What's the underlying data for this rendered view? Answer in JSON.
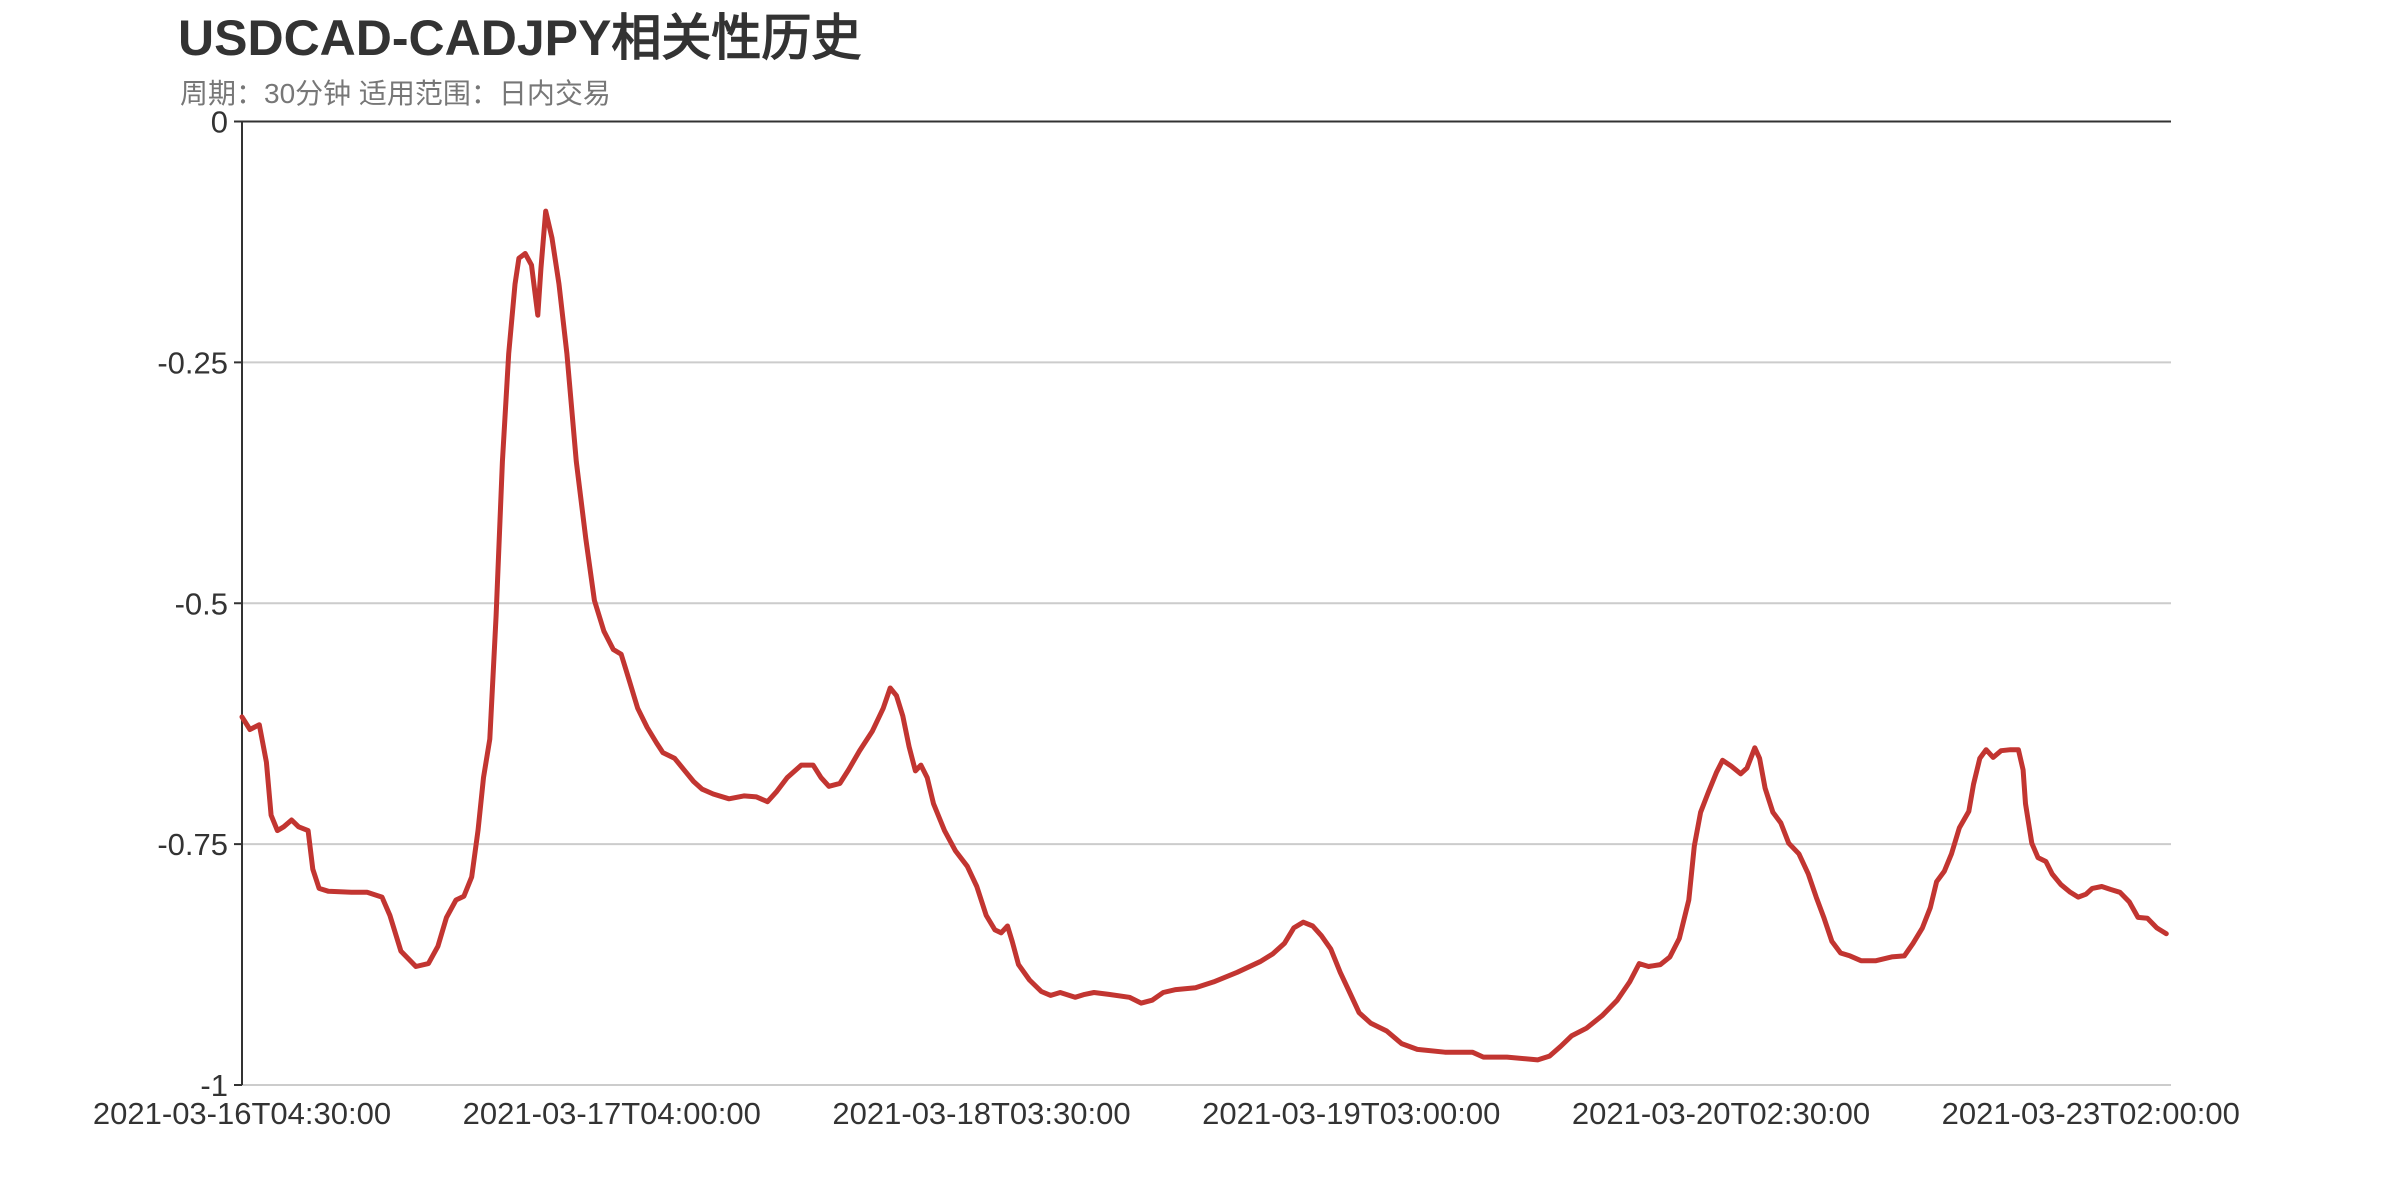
{
  "chart_data": {
    "type": "line",
    "title": "USDCAD-CADJPY相关性历史",
    "subtitle": "周期：30分钟 适用范围：日内交易",
    "xlabel": "",
    "ylabel": "",
    "ylim": [
      -1,
      0
    ],
    "xlim": [
      0,
      245.2
    ],
    "yticks": [
      {
        "value": 0,
        "label": "0"
      },
      {
        "value": -0.25,
        "label": "-0.25"
      },
      {
        "value": -0.5,
        "label": "-0.5"
      },
      {
        "value": -0.75,
        "label": "-0.75"
      },
      {
        "value": -1,
        "label": "-1"
      }
    ],
    "xticks": [
      {
        "index": 0,
        "label": "2021-03-16T04:30:00"
      },
      {
        "index": 47,
        "label": "2021-03-17T04:00:00"
      },
      {
        "index": 94,
        "label": "2021-03-18T03:30:00"
      },
      {
        "index": 141,
        "label": "2021-03-19T03:00:00"
      },
      {
        "index": 188,
        "label": "2021-03-20T02:30:00"
      },
      {
        "index": 235,
        "label": "2021-03-23T02:00:00"
      }
    ],
    "grid": true,
    "series": [
      {
        "name": "USDCAD-CADJPY",
        "color": "#c23531",
        "points": [
          [
            0,
            -0.618
          ],
          [
            1.0,
            -0.631
          ],
          [
            2.2,
            -0.626
          ],
          [
            3.1,
            -0.665
          ],
          [
            3.7,
            -0.72
          ],
          [
            4.5,
            -0.736
          ],
          [
            5.3,
            -0.732
          ],
          [
            6.3,
            -0.725
          ],
          [
            7.2,
            -0.732
          ],
          [
            8.4,
            -0.736
          ],
          [
            9.0,
            -0.776
          ],
          [
            9.8,
            -0.796
          ],
          [
            11.0,
            -0.799
          ],
          [
            13.9,
            -0.8
          ],
          [
            15.9,
            -0.8
          ],
          [
            17.8,
            -0.805
          ],
          [
            18.8,
            -0.824
          ],
          [
            20.2,
            -0.861
          ],
          [
            22.1,
            -0.877
          ],
          [
            23.7,
            -0.874
          ],
          [
            24.9,
            -0.856
          ],
          [
            26.0,
            -0.826
          ],
          [
            27.2,
            -0.808
          ],
          [
            28.2,
            -0.804
          ],
          [
            29.2,
            -0.784
          ],
          [
            30.0,
            -0.736
          ],
          [
            30.7,
            -0.681
          ],
          [
            31.5,
            -0.641
          ],
          [
            32.3,
            -0.513
          ],
          [
            33.1,
            -0.353
          ],
          [
            33.9,
            -0.241
          ],
          [
            34.7,
            -0.169
          ],
          [
            35.2,
            -0.142
          ],
          [
            36.0,
            -0.137
          ],
          [
            36.8,
            -0.149
          ],
          [
            37.6,
            -0.201
          ],
          [
            38.0,
            -0.153
          ],
          [
            38.6,
            -0.093
          ],
          [
            39.4,
            -0.121
          ],
          [
            40.3,
            -0.169
          ],
          [
            41.3,
            -0.241
          ],
          [
            42.5,
            -0.353
          ],
          [
            43.7,
            -0.433
          ],
          [
            44.8,
            -0.497
          ],
          [
            46.0,
            -0.529
          ],
          [
            47.2,
            -0.548
          ],
          [
            48.2,
            -0.553
          ],
          [
            49.1,
            -0.577
          ],
          [
            50.3,
            -0.609
          ],
          [
            51.5,
            -0.629
          ],
          [
            52.7,
            -0.645
          ],
          [
            53.5,
            -0.655
          ],
          [
            55.0,
            -0.661
          ],
          [
            56.2,
            -0.673
          ],
          [
            57.4,
            -0.685
          ],
          [
            58.5,
            -0.693
          ],
          [
            59.9,
            -0.698
          ],
          [
            61.9,
            -0.703
          ],
          [
            63.8,
            -0.7
          ],
          [
            65.4,
            -0.701
          ],
          [
            66.8,
            -0.706
          ],
          [
            67.9,
            -0.696
          ],
          [
            69.3,
            -0.681
          ],
          [
            71.1,
            -0.668
          ],
          [
            72.6,
            -0.668
          ],
          [
            73.6,
            -0.681
          ],
          [
            74.6,
            -0.69
          ],
          [
            76.0,
            -0.687
          ],
          [
            77.1,
            -0.673
          ],
          [
            78.5,
            -0.653
          ],
          [
            80.1,
            -0.633
          ],
          [
            81.5,
            -0.609
          ],
          [
            82.4,
            -0.588
          ],
          [
            83.2,
            -0.596
          ],
          [
            84.0,
            -0.617
          ],
          [
            84.8,
            -0.649
          ],
          [
            85.6,
            -0.674
          ],
          [
            86.3,
            -0.668
          ],
          [
            87.1,
            -0.681
          ],
          [
            87.9,
            -0.708
          ],
          [
            89.3,
            -0.736
          ],
          [
            90.7,
            -0.757
          ],
          [
            92.2,
            -0.773
          ],
          [
            93.4,
            -0.794
          ],
          [
            94.6,
            -0.824
          ],
          [
            95.7,
            -0.839
          ],
          [
            96.5,
            -0.842
          ],
          [
            97.3,
            -0.835
          ],
          [
            97.9,
            -0.851
          ],
          [
            98.7,
            -0.875
          ],
          [
            100.1,
            -0.891
          ],
          [
            101.6,
            -0.903
          ],
          [
            102.8,
            -0.907
          ],
          [
            104.0,
            -0.904
          ],
          [
            105.9,
            -0.909
          ],
          [
            107.1,
            -0.906
          ],
          [
            108.3,
            -0.904
          ],
          [
            110.2,
            -0.906
          ],
          [
            112.8,
            -0.909
          ],
          [
            114.3,
            -0.915
          ],
          [
            115.7,
            -0.912
          ],
          [
            117.1,
            -0.904
          ],
          [
            118.7,
            -0.901
          ],
          [
            121.2,
            -0.899
          ],
          [
            123.5,
            -0.893
          ],
          [
            126.5,
            -0.883
          ],
          [
            129.4,
            -0.872
          ],
          [
            131.0,
            -0.864
          ],
          [
            132.5,
            -0.853
          ],
          [
            133.7,
            -0.837
          ],
          [
            134.9,
            -0.831
          ],
          [
            136.1,
            -0.835
          ],
          [
            137.2,
            -0.845
          ],
          [
            138.4,
            -0.859
          ],
          [
            139.6,
            -0.883
          ],
          [
            140.8,
            -0.904
          ],
          [
            142.0,
            -0.925
          ],
          [
            143.5,
            -0.936
          ],
          [
            145.5,
            -0.944
          ],
          [
            147.4,
            -0.957
          ],
          [
            149.4,
            -0.963
          ],
          [
            152.9,
            -0.966
          ],
          [
            156.4,
            -0.966
          ],
          [
            157.8,
            -0.971
          ],
          [
            160.8,
            -0.971
          ],
          [
            164.7,
            -0.974
          ],
          [
            166.2,
            -0.97
          ],
          [
            167.6,
            -0.96
          ],
          [
            169.0,
            -0.949
          ],
          [
            170.9,
            -0.941
          ],
          [
            172.9,
            -0.928
          ],
          [
            174.8,
            -0.912
          ],
          [
            176.4,
            -0.893
          ],
          [
            177.6,
            -0.874
          ],
          [
            178.8,
            -0.877
          ],
          [
            180.3,
            -0.875
          ],
          [
            181.5,
            -0.867
          ],
          [
            182.7,
            -0.848
          ],
          [
            183.9,
            -0.808
          ],
          [
            184.6,
            -0.752
          ],
          [
            185.4,
            -0.717
          ],
          [
            186.4,
            -0.696
          ],
          [
            187.4,
            -0.676
          ],
          [
            188.2,
            -0.663
          ],
          [
            189.3,
            -0.669
          ],
          [
            190.5,
            -0.677
          ],
          [
            191.3,
            -0.671
          ],
          [
            192.3,
            -0.65
          ],
          [
            192.9,
            -0.661
          ],
          [
            193.6,
            -0.692
          ],
          [
            194.6,
            -0.717
          ],
          [
            195.6,
            -0.728
          ],
          [
            196.6,
            -0.749
          ],
          [
            197.9,
            -0.76
          ],
          [
            199.1,
            -0.781
          ],
          [
            200.1,
            -0.805
          ],
          [
            201.1,
            -0.827
          ],
          [
            202.1,
            -0.851
          ],
          [
            203.2,
            -0.863
          ],
          [
            204.4,
            -0.866
          ],
          [
            205.8,
            -0.871
          ],
          [
            207.7,
            -0.871
          ],
          [
            209.7,
            -0.867
          ],
          [
            211.3,
            -0.866
          ],
          [
            212.4,
            -0.853
          ],
          [
            213.6,
            -0.837
          ],
          [
            214.6,
            -0.816
          ],
          [
            215.4,
            -0.789
          ],
          [
            216.4,
            -0.778
          ],
          [
            217.3,
            -0.76
          ],
          [
            218.3,
            -0.733
          ],
          [
            219.5,
            -0.716
          ],
          [
            220.1,
            -0.688
          ],
          [
            220.9,
            -0.661
          ],
          [
            221.7,
            -0.652
          ],
          [
            222.6,
            -0.66
          ],
          [
            223.6,
            -0.653
          ],
          [
            224.8,
            -0.652
          ],
          [
            225.8,
            -0.652
          ],
          [
            226.4,
            -0.673
          ],
          [
            226.7,
            -0.708
          ],
          [
            227.5,
            -0.749
          ],
          [
            228.3,
            -0.764
          ],
          [
            229.3,
            -0.768
          ],
          [
            230.1,
            -0.781
          ],
          [
            231.2,
            -0.792
          ],
          [
            232.4,
            -0.8
          ],
          [
            233.4,
            -0.805
          ],
          [
            234.4,
            -0.802
          ],
          [
            235.2,
            -0.796
          ],
          [
            236.4,
            -0.794
          ],
          [
            237.5,
            -0.797
          ],
          [
            238.7,
            -0.8
          ],
          [
            239.9,
            -0.81
          ],
          [
            241.0,
            -0.826
          ],
          [
            242.2,
            -0.827
          ],
          [
            243.4,
            -0.837
          ],
          [
            244.6,
            -0.843
          ]
        ]
      }
    ]
  }
}
